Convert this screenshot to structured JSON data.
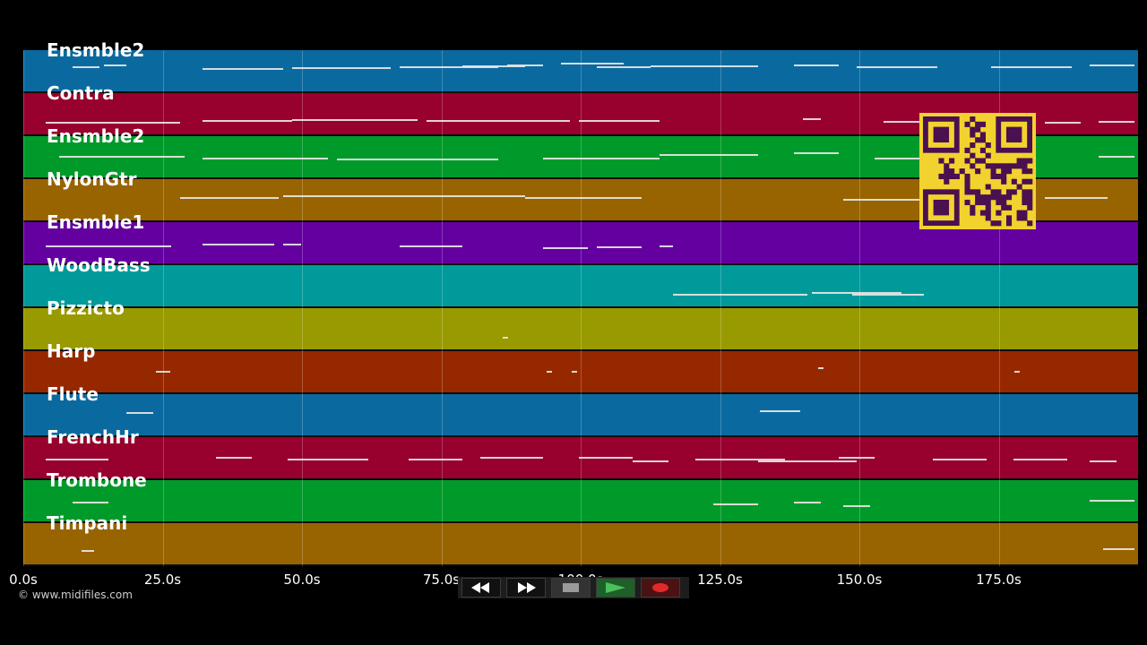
{
  "tracks": [
    {
      "label": "Ensmble2",
      "color": "#0a6aa0"
    },
    {
      "label": "Contra",
      "color": "#98002d"
    },
    {
      "label": "Ensmble2",
      "color": "#009a2a"
    },
    {
      "label": "NylonGtr",
      "color": "#986400"
    },
    {
      "label": "Ensmble1",
      "color": "#6400a0"
    },
    {
      "label": "WoodBass",
      "color": "#009a9a"
    },
    {
      "label": "Pizzicto",
      "color": "#989a00"
    },
    {
      "label": "Harp",
      "color": "#962800"
    },
    {
      "label": "Flute",
      "color": "#0a6aa0"
    },
    {
      "label": "FrenchHr",
      "color": "#98002d"
    },
    {
      "label": "Trombone",
      "color": "#009a2a"
    },
    {
      "label": "Timpani",
      "color": "#986400"
    }
  ],
  "timeline": {
    "ticks": [
      "0.0s",
      "25.0s",
      "50.0s",
      "75.0s",
      "100.0s",
      "125.0s",
      "150.0s",
      "175.0s"
    ],
    "tick_seconds": [
      0,
      25,
      50,
      75,
      100,
      125,
      150,
      175
    ],
    "max_seconds": 200
  },
  "copyright": "© www.midifiles.com",
  "transport": {
    "rewind": "rewind-icon",
    "fast_forward": "fast-forward-icon",
    "stop": "stop-icon",
    "play": "play-icon",
    "record": "record-icon"
  },
  "colors": {
    "background": "#000000",
    "qr_bg": "#f2d22e",
    "qr_fg": "#4a1050"
  }
}
